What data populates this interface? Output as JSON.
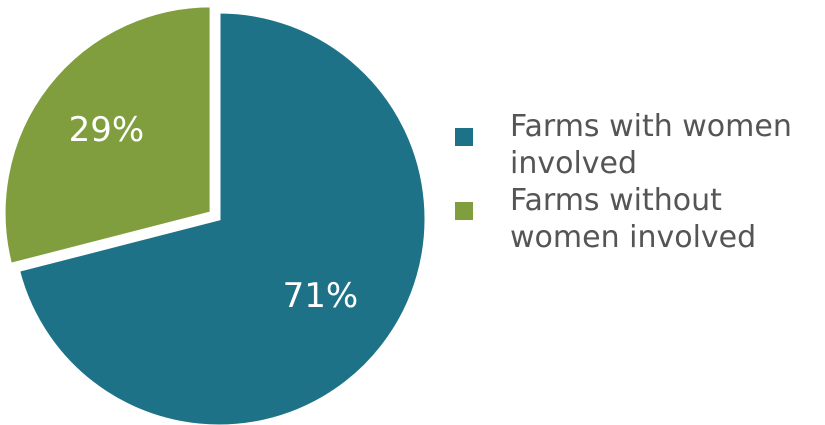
{
  "chart_data": {
    "type": "pie",
    "slices": [
      {
        "label": "Farms with women involved",
        "value": 71,
        "display": "71%",
        "color": "#1e7288"
      },
      {
        "label": "Farms without women involved",
        "value": 29,
        "display": "29%",
        "color": "#809e3e"
      }
    ],
    "legend": {
      "position": "right",
      "items": [
        {
          "label": "Farms with women involved",
          "color": "#1e7288"
        },
        {
          "label": "Farms without women involved",
          "color": "#809e3e"
        }
      ]
    }
  }
}
